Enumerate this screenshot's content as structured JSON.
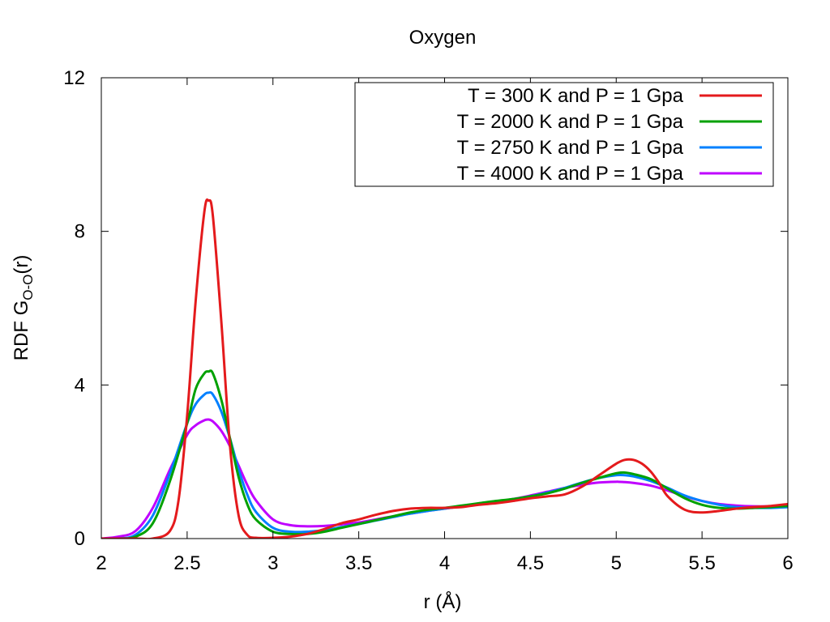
{
  "chart_data": {
    "type": "line",
    "title": "Oxygen",
    "xlabel": "r (Å)",
    "ylabel": {
      "prefix": "RDF G",
      "subscript": "O-O",
      "suffix": "(r)"
    },
    "xlim": [
      2,
      6
    ],
    "ylim": [
      0,
      12
    ],
    "xticks": [
      2,
      2.5,
      3,
      3.5,
      4,
      4.5,
      5,
      5.5,
      6
    ],
    "xtick_labels": [
      "2",
      "2.5",
      "3",
      "3.5",
      "4",
      "4.5",
      "5",
      "5.5",
      "6"
    ],
    "yticks": [
      0,
      4,
      8,
      12
    ],
    "ytick_labels": [
      "0",
      "4",
      "8",
      "12"
    ],
    "grid": false,
    "legend_position": "top-right",
    "series": [
      {
        "name": "T = 300 K and P = 1 Gpa",
        "color": "#e41a1c",
        "x": [
          2.0,
          2.2,
          2.3,
          2.4,
          2.45,
          2.5,
          2.55,
          2.6,
          2.625,
          2.65,
          2.7,
          2.75,
          2.8,
          2.85,
          2.9,
          3.0,
          3.1,
          3.2,
          3.3,
          3.4,
          3.5,
          3.6,
          3.7,
          3.8,
          3.9,
          4.0,
          4.1,
          4.2,
          4.3,
          4.4,
          4.5,
          4.6,
          4.7,
          4.8,
          4.9,
          5.0,
          5.05,
          5.1,
          5.15,
          5.2,
          5.25,
          5.3,
          5.4,
          5.5,
          5.6,
          5.7,
          5.8,
          5.9,
          6.0
        ],
        "y": [
          0.0,
          0.0,
          0.0,
          0.2,
          1.0,
          3.2,
          6.2,
          8.5,
          8.8,
          8.4,
          5.6,
          2.4,
          0.6,
          0.1,
          0.02,
          0.02,
          0.05,
          0.12,
          0.25,
          0.4,
          0.5,
          0.62,
          0.72,
          0.78,
          0.8,
          0.8,
          0.82,
          0.88,
          0.92,
          0.98,
          1.05,
          1.1,
          1.15,
          1.35,
          1.65,
          1.95,
          2.05,
          2.05,
          1.95,
          1.75,
          1.45,
          1.1,
          0.75,
          0.68,
          0.72,
          0.78,
          0.82,
          0.85,
          0.9
        ]
      },
      {
        "name": "T = 2000 K and P = 1 Gpa",
        "color": "#00a100",
        "x": [
          2.0,
          2.1,
          2.2,
          2.3,
          2.4,
          2.5,
          2.55,
          2.6,
          2.625,
          2.65,
          2.7,
          2.75,
          2.8,
          2.85,
          2.9,
          3.0,
          3.1,
          3.2,
          3.3,
          3.4,
          3.5,
          3.6,
          3.7,
          3.8,
          3.9,
          4.0,
          4.1,
          4.2,
          4.3,
          4.4,
          4.5,
          4.6,
          4.7,
          4.8,
          4.9,
          5.0,
          5.05,
          5.1,
          5.2,
          5.3,
          5.4,
          5.5,
          5.6,
          5.7,
          5.8,
          5.9,
          6.0
        ],
        "y": [
          0.0,
          0.0,
          0.05,
          0.4,
          1.5,
          3.0,
          3.9,
          4.3,
          4.35,
          4.3,
          3.6,
          2.6,
          1.6,
          0.9,
          0.5,
          0.18,
          0.12,
          0.12,
          0.18,
          0.28,
          0.38,
          0.48,
          0.58,
          0.68,
          0.75,
          0.8,
          0.86,
          0.92,
          0.98,
          1.03,
          1.1,
          1.18,
          1.3,
          1.45,
          1.58,
          1.7,
          1.72,
          1.68,
          1.55,
          1.3,
          1.05,
          0.88,
          0.8,
          0.78,
          0.8,
          0.82,
          0.85
        ]
      },
      {
        "name": "T = 2750 K and P = 1 Gpa",
        "color": "#0080ff",
        "x": [
          2.0,
          2.1,
          2.2,
          2.3,
          2.4,
          2.5,
          2.55,
          2.6,
          2.625,
          2.65,
          2.7,
          2.75,
          2.8,
          2.85,
          2.9,
          3.0,
          3.1,
          3.2,
          3.3,
          3.4,
          3.5,
          3.6,
          3.7,
          3.8,
          3.9,
          4.0,
          4.1,
          4.2,
          4.3,
          4.4,
          4.5,
          4.6,
          4.7,
          4.8,
          4.9,
          5.0,
          5.05,
          5.1,
          5.2,
          5.3,
          5.4,
          5.5,
          5.6,
          5.7,
          5.8,
          5.9,
          6.0
        ],
        "y": [
          0.0,
          0.0,
          0.1,
          0.6,
          1.7,
          3.0,
          3.5,
          3.75,
          3.8,
          3.75,
          3.3,
          2.6,
          1.8,
          1.15,
          0.7,
          0.28,
          0.18,
          0.18,
          0.22,
          0.3,
          0.38,
          0.47,
          0.56,
          0.65,
          0.72,
          0.78,
          0.84,
          0.9,
          0.96,
          1.02,
          1.1,
          1.2,
          1.32,
          1.46,
          1.58,
          1.65,
          1.65,
          1.62,
          1.5,
          1.32,
          1.12,
          0.98,
          0.88,
          0.82,
          0.8,
          0.8,
          0.82
        ]
      },
      {
        "name": "T = 4000 K and P = 1 Gpa",
        "color": "#bf00ff",
        "x": [
          2.0,
          2.1,
          2.2,
          2.3,
          2.4,
          2.5,
          2.55,
          2.6,
          2.625,
          2.65,
          2.7,
          2.75,
          2.8,
          2.85,
          2.9,
          3.0,
          3.1,
          3.2,
          3.3,
          3.4,
          3.5,
          3.6,
          3.7,
          3.8,
          3.9,
          4.0,
          4.1,
          4.2,
          4.3,
          4.4,
          4.5,
          4.6,
          4.7,
          4.8,
          4.9,
          5.0,
          5.05,
          5.1,
          5.2,
          5.3,
          5.4,
          5.5,
          5.6,
          5.7,
          5.8,
          5.9,
          6.0
        ],
        "y": [
          0.0,
          0.05,
          0.2,
          0.8,
          1.8,
          2.7,
          2.95,
          3.08,
          3.1,
          3.05,
          2.8,
          2.4,
          1.9,
          1.4,
          1.0,
          0.5,
          0.35,
          0.32,
          0.33,
          0.37,
          0.42,
          0.5,
          0.58,
          0.65,
          0.72,
          0.78,
          0.84,
          0.9,
          0.96,
          1.03,
          1.12,
          1.22,
          1.32,
          1.4,
          1.46,
          1.48,
          1.47,
          1.45,
          1.38,
          1.25,
          1.1,
          0.98,
          0.9,
          0.86,
          0.84,
          0.84,
          0.85
        ]
      }
    ]
  }
}
